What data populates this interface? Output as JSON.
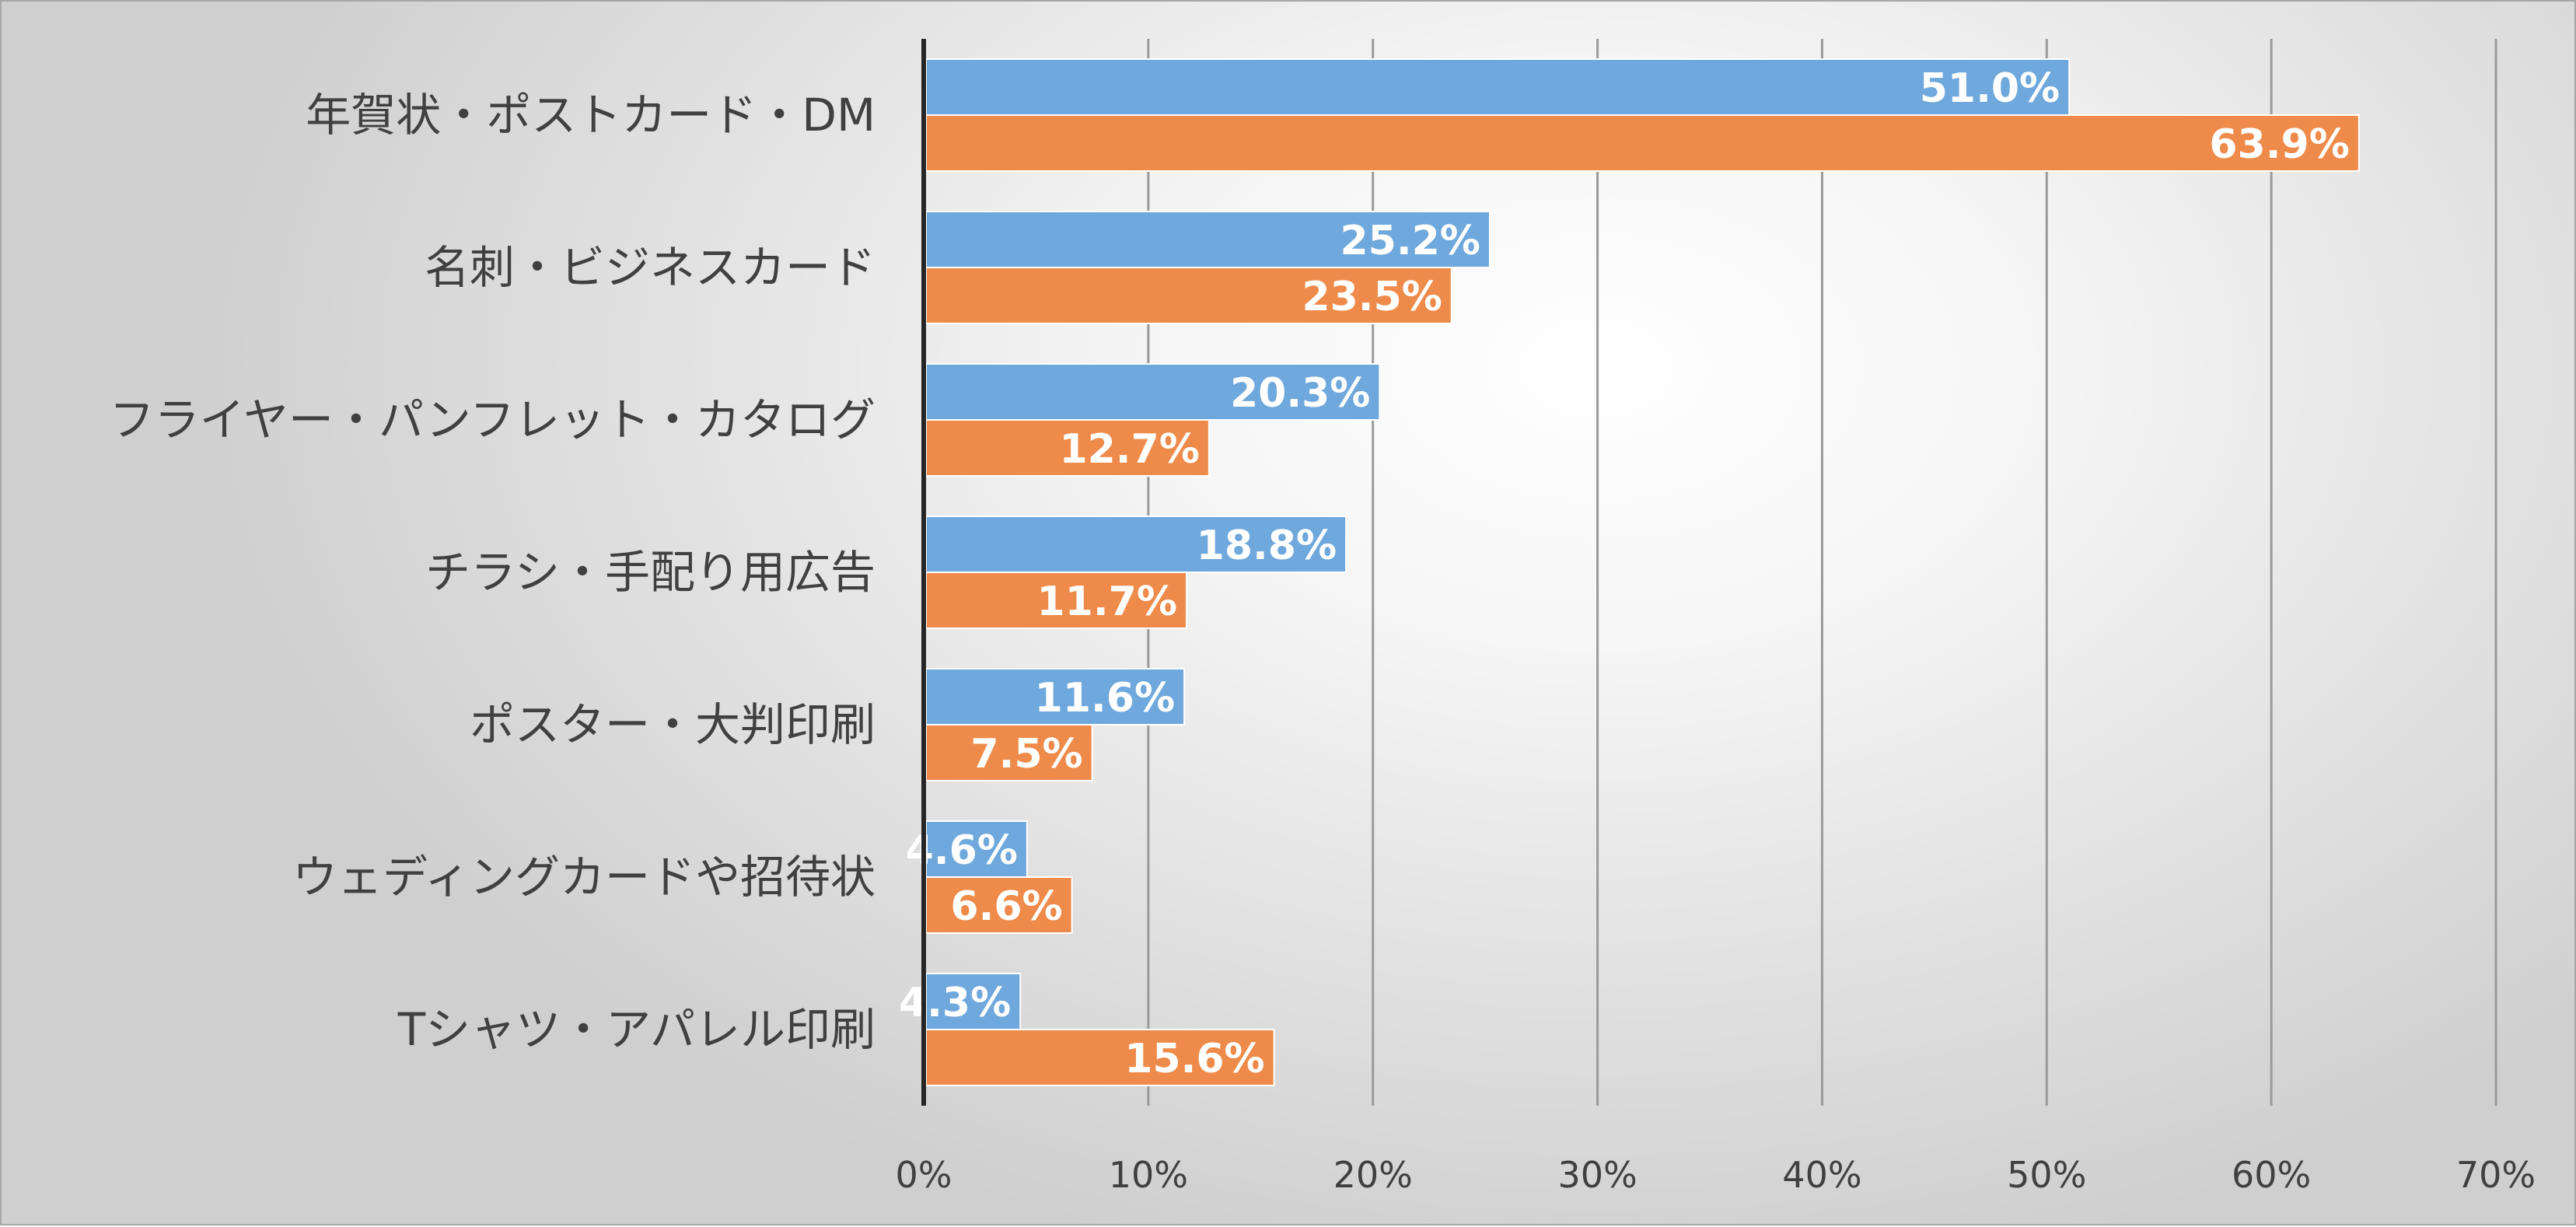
{
  "chart_data": {
    "type": "bar",
    "orientation": "horizontal",
    "categories": [
      "年賀状・ポストカード・DM",
      "名刺・ビジネスカード",
      "フライヤー・パンフレット・カタログ",
      "チラシ・手配り用広告",
      "ポスター・大判印刷",
      "ウェディングカードや招待状",
      "Tシャツ・アパレル印刷"
    ],
    "series": [
      {
        "color": "#6fa8dc",
        "values": [
          51.0,
          25.2,
          20.3,
          18.8,
          11.6,
          4.6,
          4.3
        ]
      },
      {
        "color": "#ef8b4a",
        "values": [
          63.9,
          23.5,
          12.7,
          11.7,
          7.5,
          6.6,
          15.6
        ]
      }
    ],
    "xlim": [
      0,
      70
    ],
    "xticks": [
      0,
      10,
      20,
      30,
      40,
      50,
      60,
      70
    ],
    "tick_format": "{v}%",
    "value_format": "{v}%",
    "grid": true,
    "legend": "none"
  }
}
